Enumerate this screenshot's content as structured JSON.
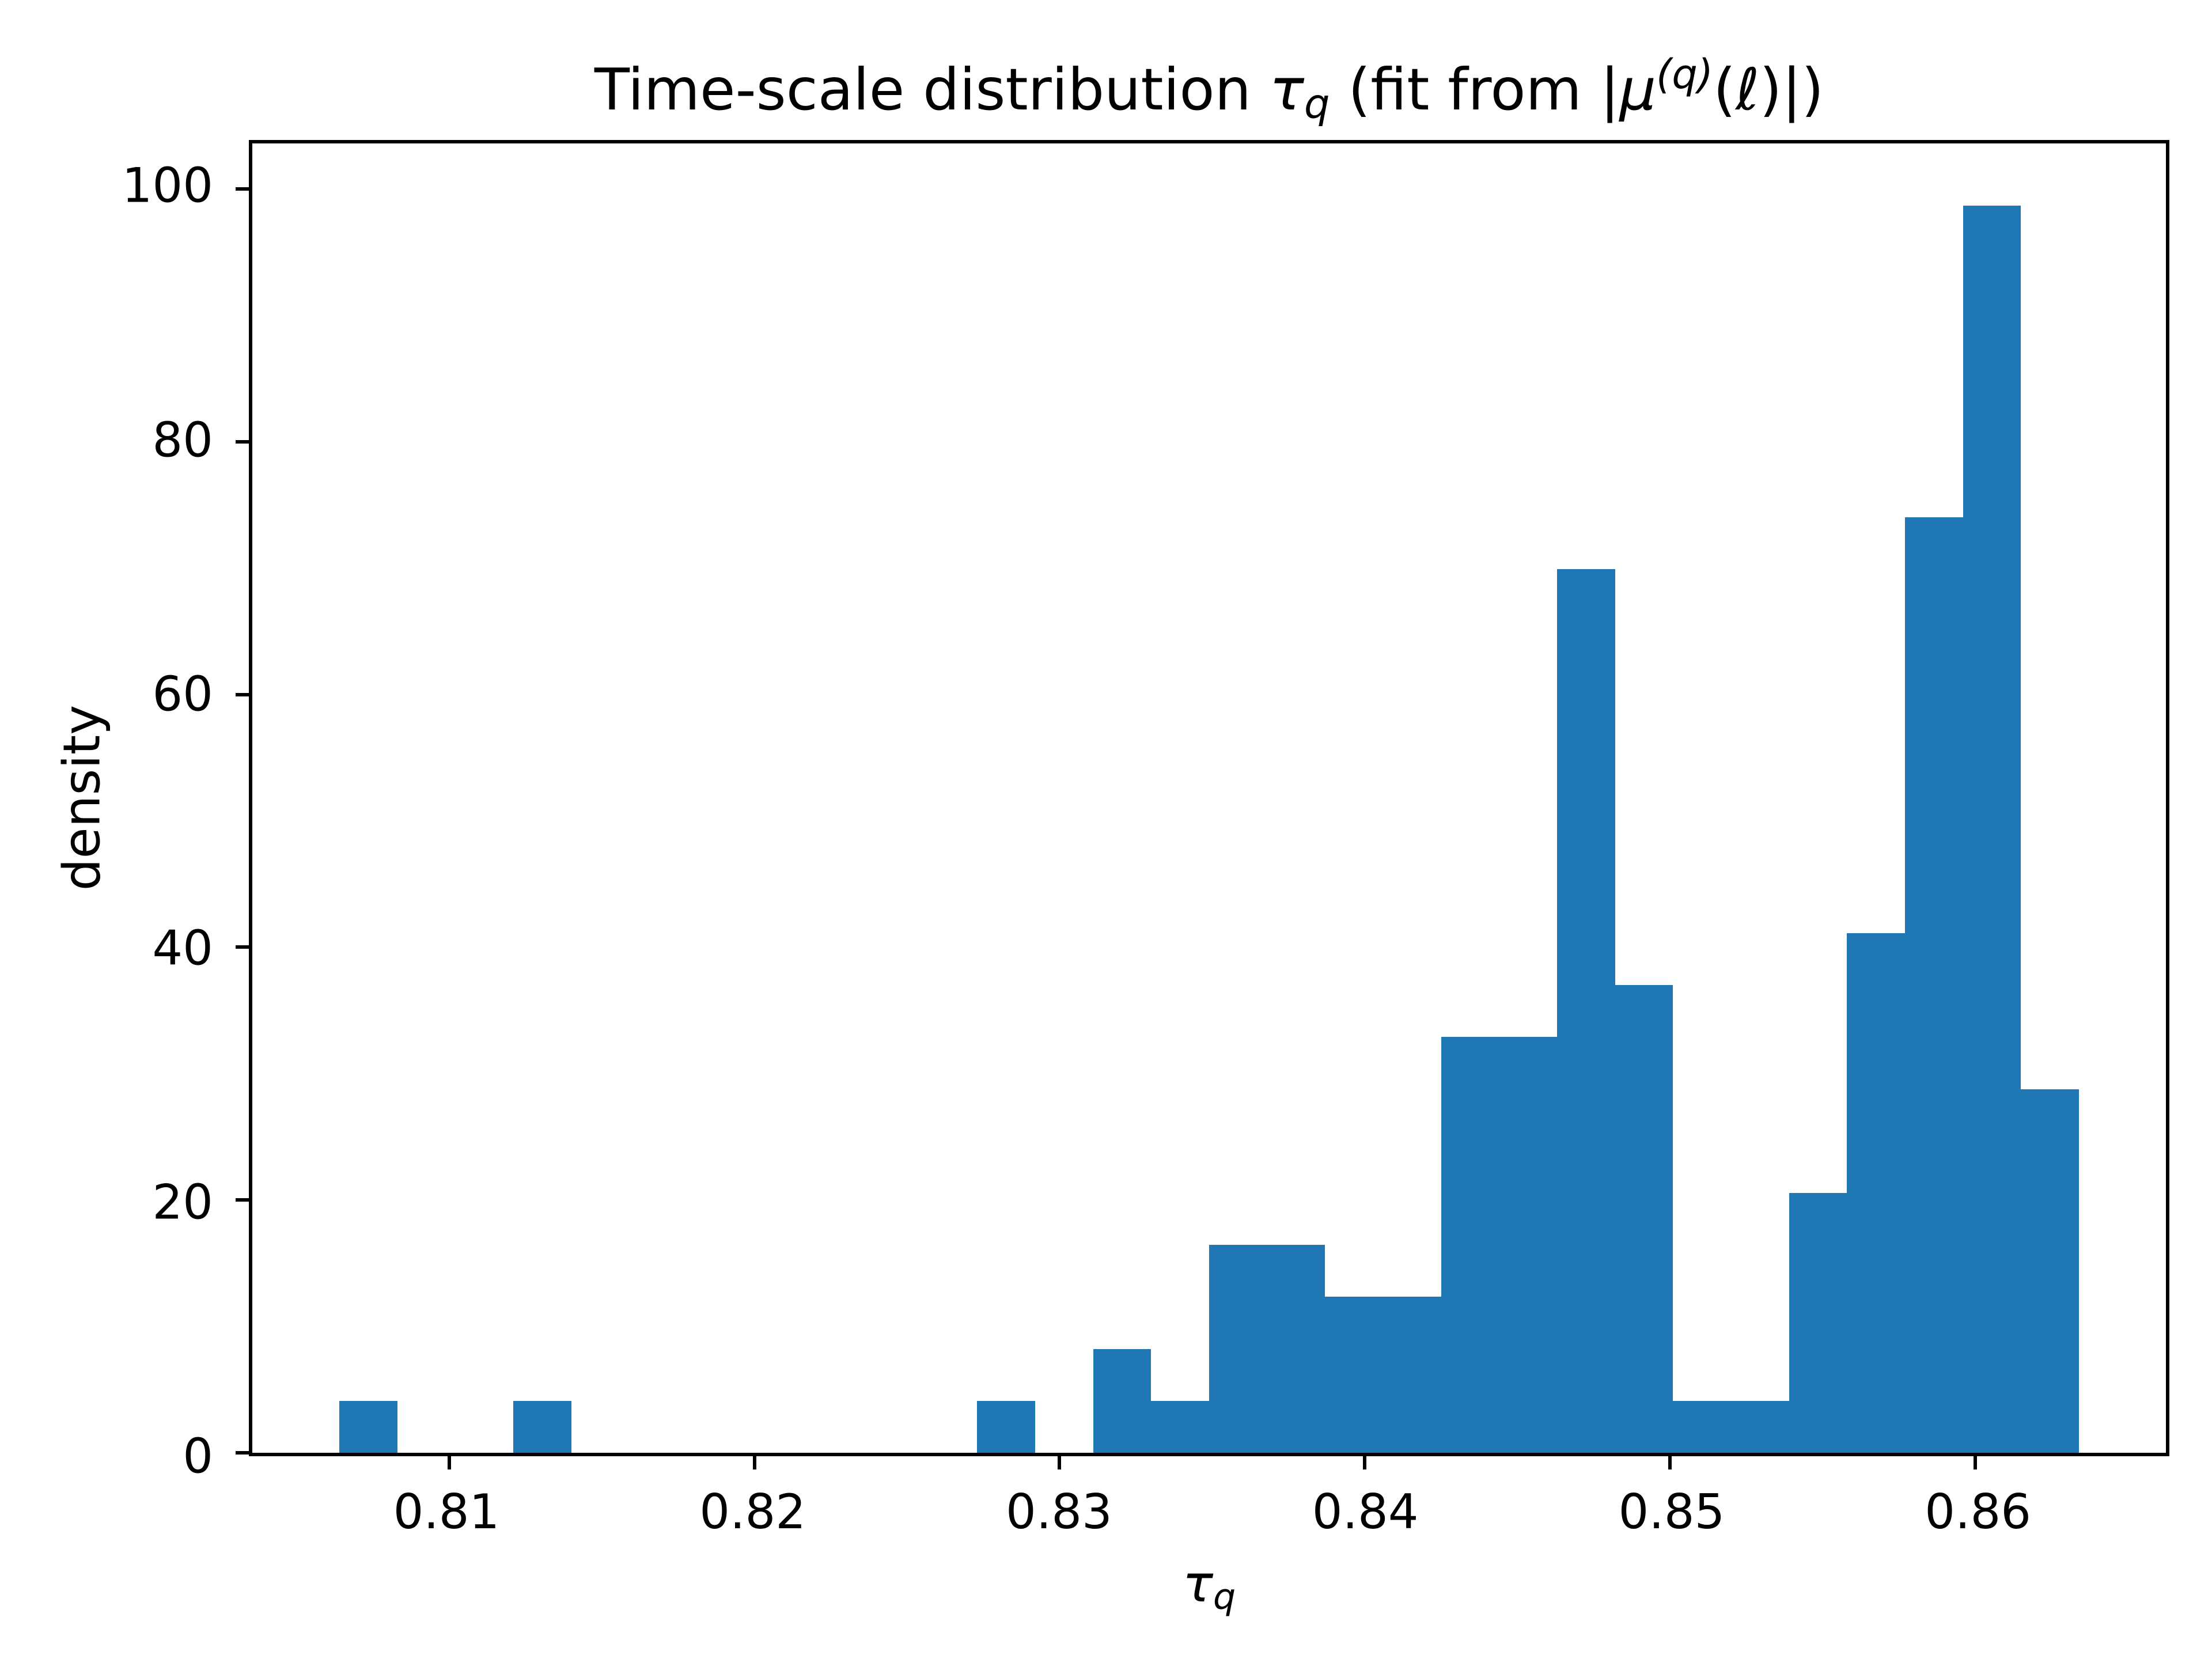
{
  "figure": {
    "background_color": "#ffffff",
    "text_color": "#000000",
    "title_plain": "Time-scale distribution τq (fit from |μ(q)(ℓ)|)",
    "title_segments": [
      {
        "t": "Time-scale distribution "
      },
      {
        "t": "τ",
        "style": "italic"
      },
      {
        "t": "q",
        "style": "sub"
      },
      {
        "t": " (fit from |"
      },
      {
        "t": "μ",
        "style": "italic"
      },
      {
        "t": "(q)",
        "style": "sup"
      },
      {
        "t": "(ℓ)|)"
      }
    ]
  },
  "axes": {
    "x": {
      "label_plain": "τq",
      "label_segments": [
        {
          "t": "τ",
          "style": "italic"
        },
        {
          "t": "q",
          "style": "sub"
        }
      ],
      "lim": [
        0.80355,
        0.86625
      ],
      "ticks": [
        {
          "value": 0.81,
          "label": "0.81"
        },
        {
          "value": 0.82,
          "label": "0.82"
        },
        {
          "value": 0.83,
          "label": "0.83"
        },
        {
          "value": 0.84,
          "label": "0.84"
        },
        {
          "value": 0.85,
          "label": "0.85"
        },
        {
          "value": 0.86,
          "label": "0.86"
        }
      ]
    },
    "y": {
      "label": "density",
      "lim": [
        0,
        103.6
      ],
      "ticks": [
        {
          "value": 0,
          "label": "0"
        },
        {
          "value": 20,
          "label": "20"
        },
        {
          "value": 40,
          "label": "40"
        },
        {
          "value": 60,
          "label": "60"
        },
        {
          "value": 80,
          "label": "80"
        },
        {
          "value": 100,
          "label": "100"
        }
      ]
    }
  },
  "chart_data": {
    "type": "bar",
    "subtype": "histogram",
    "title": "Time-scale distribution τq (fit from |μ(q)(ℓ)|)",
    "xlabel": "τq",
    "ylabel": "density",
    "bar_color": "#1f77b4",
    "grid": false,
    "legend": false,
    "xlim": [
      0.80355,
      0.86625
    ],
    "ylim": [
      0,
      103.6
    ],
    "bin_width": 0.0019,
    "bin_edges": [
      0.8064,
      0.8083,
      0.8102,
      0.8121,
      0.814,
      0.8159,
      0.8178,
      0.8197,
      0.8216,
      0.8235,
      0.8254,
      0.8273,
      0.8292,
      0.8311,
      0.833,
      0.8349,
      0.8368,
      0.8387,
      0.8406,
      0.8425,
      0.8444,
      0.8463,
      0.8482,
      0.8501,
      0.852,
      0.8539,
      0.8558,
      0.8577,
      0.8596,
      0.8615,
      0.8634
    ],
    "densities": [
      4.11,
      0,
      0,
      4.11,
      0,
      0,
      0,
      0,
      0,
      0,
      0,
      4.11,
      0,
      8.22,
      4.11,
      16.45,
      16.45,
      12.34,
      12.34,
      32.89,
      32.89,
      69.9,
      37.01,
      4.11,
      4.11,
      20.56,
      41.12,
      74.01,
      98.68,
      28.78
    ]
  }
}
